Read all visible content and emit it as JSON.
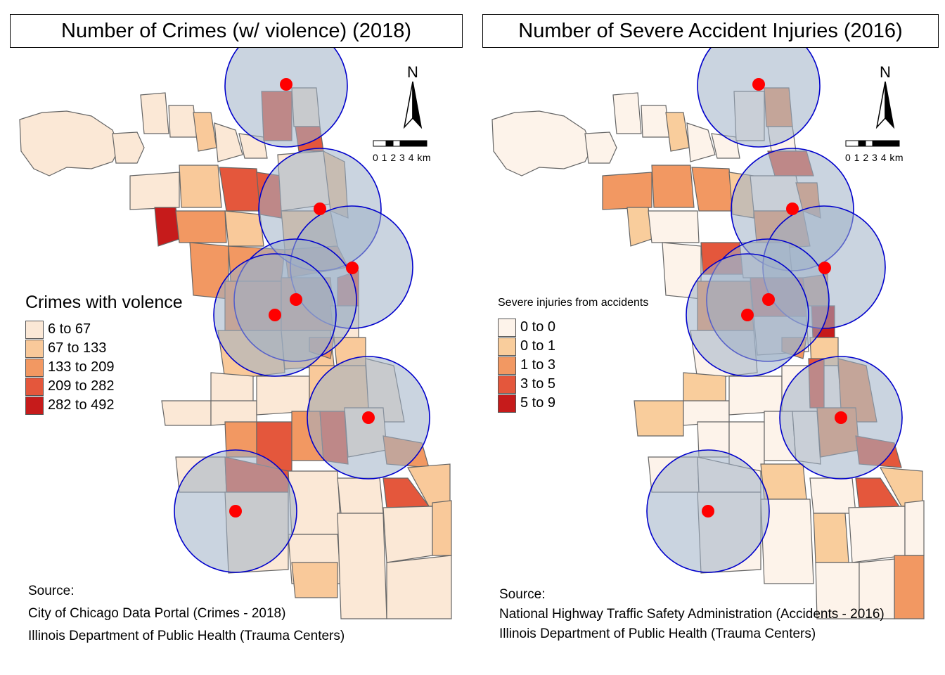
{
  "left_panel": {
    "title": "Number of Crimes (w/ violence) (2018)",
    "legend_title": "Crimes with volence",
    "legend": [
      {
        "label": "6 to 67",
        "color": "#fbe8d6"
      },
      {
        "label": "67 to 133",
        "color": "#f9c99a"
      },
      {
        "label": "133 to 209",
        "color": "#f29862"
      },
      {
        "label": "209 to 282",
        "color": "#e4573c"
      },
      {
        "label": "282 to 492",
        "color": "#c61b1b"
      }
    ],
    "source_heading": "Source:",
    "source_lines": [
      "City of Chicago Data Portal (Crimes - 2018)",
      "Illinois Department of Public Health (Trauma Centers)"
    ]
  },
  "right_panel": {
    "title": "Number of Severe Accident Injuries (2016)",
    "legend_title": "Severe injuries from accidents",
    "legend": [
      {
        "label": "0 to 0",
        "color": "#fdf3ea"
      },
      {
        "label": "0 to 1",
        "color": "#f9cd9c"
      },
      {
        "label": "1 to 3",
        "color": "#f29862"
      },
      {
        "label": "3 to 5",
        "color": "#e4573c"
      },
      {
        "label": "5 to 9",
        "color": "#c61b1b"
      }
    ],
    "source_heading": "Source:",
    "source_lines": [
      "National Highway Traffic Safety Administration (Accidents - 2016)",
      "Illinois Department of Public Health (Trauma Centers)"
    ]
  },
  "north_arrow": "N",
  "scale_bar": {
    "labels": "0 1 2 3 4 km"
  },
  "styling": {
    "buffer_fill": "#9fb0c6",
    "buffer_stroke": "#0000cc",
    "trauma_center_color": "#ff0000",
    "boundary_color": "#666666"
  }
}
